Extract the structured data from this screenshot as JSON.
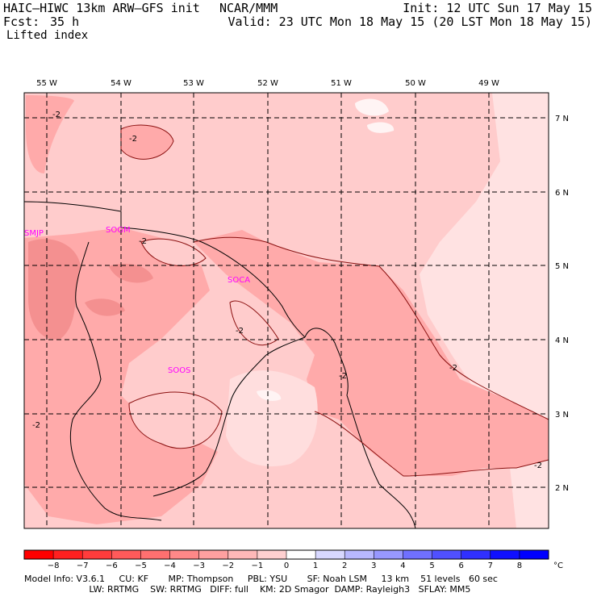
{
  "header": {
    "model_title": "HAIC–HIWC 13km ARW–GFS init",
    "center": "NCAR/MMM",
    "init": "Init: 12 UTC Sun 17 May 15",
    "fcst_label": "Fcst:",
    "fcst_value": "35 h",
    "valid": "Valid: 23 UTC Mon 18 May 15 (20 LST Mon 18 May 15)",
    "field": "Lifted index"
  },
  "map": {
    "lon_labels": [
      "55 W",
      "54 W",
      "53 W",
      "52 W",
      "51 W",
      "50 W",
      "49 W"
    ],
    "lat_labels": [
      "7 N",
      "6 N",
      "5 N",
      "4 N",
      "3 N",
      "2 N"
    ],
    "stations": [
      "SMJP",
      "SOGM",
      "SOCA",
      "SOOS"
    ],
    "contour_label": "-2",
    "colors": {
      "shade_neg1": "#ffcccc",
      "shade_neg2": "#ffaaaa",
      "shade_neg3": "#f08080",
      "shade_0": "#ffeeee",
      "station": "#ff00ff"
    }
  },
  "colorbar": {
    "unit": "°C",
    "ticks": [
      "−8",
      "−7",
      "−6",
      "−5",
      "−4",
      "−3",
      "−2",
      "−1",
      "0",
      "1",
      "2",
      "3",
      "4",
      "5",
      "6",
      "7",
      "8"
    ],
    "colors": [
      "#ff0000",
      "#ff2020",
      "#ff3c3c",
      "#ff5a5a",
      "#ff7070",
      "#ff8888",
      "#ffa0a0",
      "#ffb8b8",
      "#ffd0d0",
      "#ffffff",
      "#d8d8ff",
      "#b8b8ff",
      "#9898ff",
      "#7070ff",
      "#5050ff",
      "#3030ff",
      "#1010ff",
      "#0000ff"
    ]
  },
  "footer": {
    "line1": "Model Info: V3.6.1     CU: KF       MP: Thompson     PBL: YSU       SF: Noah LSM     13 km    51 levels   60 sec",
    "line2": "                       LW: RRTMG    SW: RRTMG   DIFF: full    KM: 2D Smagor  DAMP: Rayleigh3   SFLAY: MM5"
  }
}
